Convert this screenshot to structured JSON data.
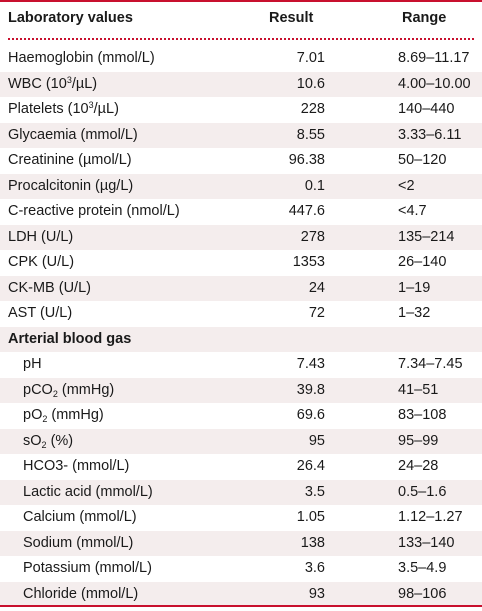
{
  "table": {
    "headers": {
      "name": "Laboratory values",
      "result": "Result",
      "range": "Range"
    },
    "rows": [
      {
        "kind": "value",
        "indent": false,
        "shaded": false,
        "name": "Haemoglobin (mmol/L)",
        "result": "7.01",
        "range": "8.69–11.17"
      },
      {
        "kind": "value",
        "indent": false,
        "shaded": true,
        "name_parts": [
          "WBC (10",
          {
            "sup": "3"
          },
          "/µL)"
        ],
        "result": "10.6",
        "range": "4.00–10.00"
      },
      {
        "kind": "value",
        "indent": false,
        "shaded": false,
        "name_parts": [
          "Platelets (10",
          {
            "sup": "3"
          },
          "/µL)"
        ],
        "result": "228",
        "range": "140–440"
      },
      {
        "kind": "value",
        "indent": false,
        "shaded": true,
        "name": "Glycaemia (mmol/L)",
        "result": "8.55",
        "range": "3.33–6.11"
      },
      {
        "kind": "value",
        "indent": false,
        "shaded": false,
        "name": "Creatinine (µmol/L)",
        "result": "96.38",
        "range": "50–120"
      },
      {
        "kind": "value",
        "indent": false,
        "shaded": true,
        "name": "Procalcitonin (µg/L)",
        "result": "0.1",
        "range": "<2"
      },
      {
        "kind": "value",
        "indent": false,
        "shaded": false,
        "name": "C-reactive protein (nmol/L)",
        "result": "447.6",
        "range": "<4.7"
      },
      {
        "kind": "value",
        "indent": false,
        "shaded": true,
        "name": "LDH (U/L)",
        "result": "278",
        "range": "135–214"
      },
      {
        "kind": "value",
        "indent": false,
        "shaded": false,
        "name": "CPK (U/L)",
        "result": "1353",
        "range": "26–140"
      },
      {
        "kind": "value",
        "indent": false,
        "shaded": true,
        "name": "CK-MB (U/L)",
        "result": "24",
        "range": "1–19"
      },
      {
        "kind": "value",
        "indent": false,
        "shaded": false,
        "name": "AST (U/L)",
        "result": "72",
        "range": "1–32"
      },
      {
        "kind": "section",
        "indent": false,
        "shaded": true,
        "name": "Arterial blood gas",
        "result": "",
        "range": ""
      },
      {
        "kind": "value",
        "indent": true,
        "shaded": false,
        "name": "pH",
        "result": "7.43",
        "range": "7.34–7.45"
      },
      {
        "kind": "value",
        "indent": true,
        "shaded": true,
        "name_parts": [
          "pCO",
          {
            "sub": "2"
          },
          " (mmHg)"
        ],
        "result": "39.8",
        "range": "41–51"
      },
      {
        "kind": "value",
        "indent": true,
        "shaded": false,
        "name_parts": [
          "pO",
          {
            "sub": "2"
          },
          " (mmHg)"
        ],
        "result": "69.6",
        "range": "83–108"
      },
      {
        "kind": "value",
        "indent": true,
        "shaded": true,
        "name_parts": [
          "sO",
          {
            "sub": "2"
          },
          " (%)"
        ],
        "result": "95",
        "range": "95–99"
      },
      {
        "kind": "value",
        "indent": true,
        "shaded": false,
        "name": "HCO3- (mmol/L)",
        "result": "26.4",
        "range": "24–28"
      },
      {
        "kind": "value",
        "indent": true,
        "shaded": true,
        "name": "Lactic acid (mmol/L)",
        "result": "3.5",
        "range": "0.5–1.6"
      },
      {
        "kind": "value",
        "indent": true,
        "shaded": false,
        "name": "Calcium (mmol/L)",
        "result": "1.05",
        "range": "1.12–1.27"
      },
      {
        "kind": "value",
        "indent": true,
        "shaded": true,
        "name": "Sodium (mmol/L)",
        "result": "138",
        "range": "133–140"
      },
      {
        "kind": "value",
        "indent": true,
        "shaded": false,
        "name": "Potassium (mmol/L)",
        "result": "3.6",
        "range": "3.5–4.9"
      },
      {
        "kind": "value",
        "indent": true,
        "shaded": true,
        "name": "Chloride (mmol/L)",
        "result": "93",
        "range": "98–106"
      }
    ]
  },
  "colors": {
    "accent_rule": "#c8102e",
    "row_shade": "#f4eded"
  }
}
